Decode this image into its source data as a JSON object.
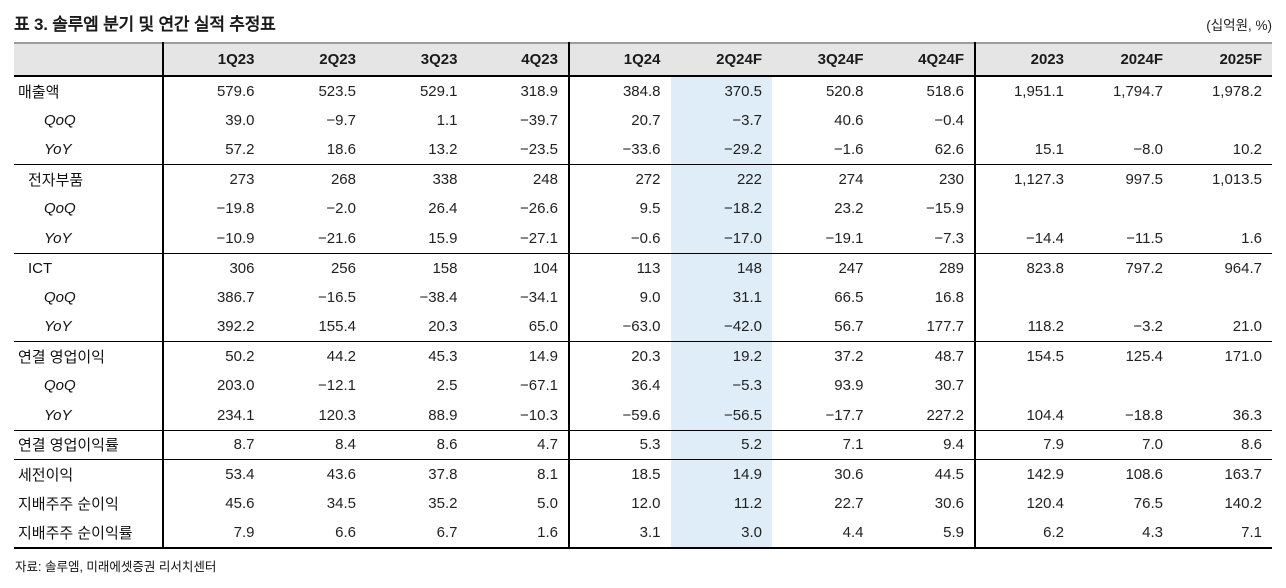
{
  "title": "표 3. 솔루엠 분기 및 연간 실적 추정표",
  "unit": "(십억원, %)",
  "source": "자료: 솔루엠, 미래에셋증권 리서치센터",
  "colors": {
    "header_bg": "#e5e5e5",
    "highlight_bg": "#deedf8",
    "rule_dark": "#000000",
    "rule_top_gray": "#9c9c9c"
  },
  "table": {
    "columns": [
      "1Q23",
      "2Q23",
      "3Q23",
      "4Q23",
      "1Q24",
      "2Q24F",
      "3Q24F",
      "4Q24F",
      "2023",
      "2024F",
      "2025F"
    ],
    "highlight_column_label": "2Q24F",
    "highlight_value_index": 5,
    "vertical_divider_after_indices": [
      3,
      7
    ],
    "rows": [
      {
        "label": "매출액",
        "indent": 0,
        "italic": false,
        "rule_above": false,
        "values": [
          "579.6",
          "523.5",
          "529.1",
          "318.9",
          "384.8",
          "370.5",
          "520.8",
          "518.6",
          "1,951.1",
          "1,794.7",
          "1,978.2"
        ]
      },
      {
        "label": "QoQ",
        "indent": 2,
        "italic": true,
        "rule_above": false,
        "values": [
          "39.0",
          "−9.7",
          "1.1",
          "−39.7",
          "20.7",
          "−3.7",
          "40.6",
          "−0.4",
          "",
          "",
          ""
        ]
      },
      {
        "label": "YoY",
        "indent": 2,
        "italic": true,
        "rule_above": false,
        "values": [
          "57.2",
          "18.6",
          "13.2",
          "−23.5",
          "−33.6",
          "−29.2",
          "−1.6",
          "62.6",
          "15.1",
          "−8.0",
          "10.2"
        ]
      },
      {
        "label": "전자부품",
        "indent": 1,
        "italic": false,
        "rule_above": true,
        "values": [
          "273",
          "268",
          "338",
          "248",
          "272",
          "222",
          "274",
          "230",
          "1,127.3",
          "997.5",
          "1,013.5"
        ]
      },
      {
        "label": "QoQ",
        "indent": 2,
        "italic": true,
        "rule_above": false,
        "values": [
          "−19.8",
          "−2.0",
          "26.4",
          "−26.6",
          "9.5",
          "−18.2",
          "23.2",
          "−15.9",
          "",
          "",
          ""
        ]
      },
      {
        "label": "YoY",
        "indent": 2,
        "italic": true,
        "rule_above": false,
        "values": [
          "−10.9",
          "−21.6",
          "15.9",
          "−27.1",
          "−0.6",
          "−17.0",
          "−19.1",
          "−7.3",
          "−14.4",
          "−11.5",
          "1.6"
        ]
      },
      {
        "label": "ICT",
        "indent": 1,
        "italic": false,
        "rule_above": true,
        "values": [
          "306",
          "256",
          "158",
          "104",
          "113",
          "148",
          "247",
          "289",
          "823.8",
          "797.2",
          "964.7"
        ]
      },
      {
        "label": "QoQ",
        "indent": 2,
        "italic": true,
        "rule_above": false,
        "values": [
          "386.7",
          "−16.5",
          "−38.4",
          "−34.1",
          "9.0",
          "31.1",
          "66.5",
          "16.8",
          "",
          "",
          ""
        ]
      },
      {
        "label": "YoY",
        "indent": 2,
        "italic": true,
        "rule_above": false,
        "values": [
          "392.2",
          "155.4",
          "20.3",
          "65.0",
          "−63.0",
          "−42.0",
          "56.7",
          "177.7",
          "118.2",
          "−3.2",
          "21.0"
        ]
      },
      {
        "label": "연결 영업이익",
        "indent": 0,
        "italic": false,
        "rule_above": true,
        "values": [
          "50.2",
          "44.2",
          "45.3",
          "14.9",
          "20.3",
          "19.2",
          "37.2",
          "48.7",
          "154.5",
          "125.4",
          "171.0"
        ]
      },
      {
        "label": "QoQ",
        "indent": 2,
        "italic": true,
        "rule_above": false,
        "values": [
          "203.0",
          "−12.1",
          "2.5",
          "−67.1",
          "36.4",
          "−5.3",
          "93.9",
          "30.7",
          "",
          "",
          ""
        ]
      },
      {
        "label": "YoY",
        "indent": 2,
        "italic": true,
        "rule_above": false,
        "values": [
          "234.1",
          "120.3",
          "88.9",
          "−10.3",
          "−59.6",
          "−56.5",
          "−17.7",
          "227.2",
          "104.4",
          "−18.8",
          "36.3"
        ]
      },
      {
        "label": "연결 영업이익률",
        "indent": 0,
        "italic": false,
        "rule_above": true,
        "values": [
          "8.7",
          "8.4",
          "8.6",
          "4.7",
          "5.3",
          "5.2",
          "7.1",
          "9.4",
          "7.9",
          "7.0",
          "8.6"
        ]
      },
      {
        "label": "세전이익",
        "indent": 0,
        "italic": false,
        "rule_above": true,
        "values": [
          "53.4",
          "43.6",
          "37.8",
          "8.1",
          "18.5",
          "14.9",
          "30.6",
          "44.5",
          "142.9",
          "108.6",
          "163.7"
        ]
      },
      {
        "label": "지배주주 순이익",
        "indent": 0,
        "italic": false,
        "rule_above": false,
        "values": [
          "45.6",
          "34.5",
          "35.2",
          "5.0",
          "12.0",
          "11.2",
          "22.7",
          "30.6",
          "120.4",
          "76.5",
          "140.2"
        ]
      },
      {
        "label": "지배주주 순이익률",
        "indent": 0,
        "italic": false,
        "rule_above": false,
        "values": [
          "7.9",
          "6.6",
          "6.7",
          "1.6",
          "3.1",
          "3.0",
          "4.4",
          "5.9",
          "6.2",
          "4.3",
          "7.1"
        ]
      }
    ]
  }
}
